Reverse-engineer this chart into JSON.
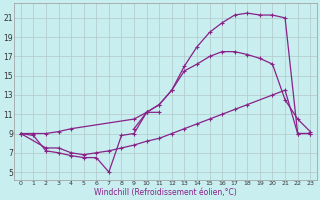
{
  "bg_color": "#c8eef0",
  "line_color": "#882288",
  "grid_color": "#b0c8c8",
  "xlabel": "Windchill (Refroidissement éolien,°C)",
  "yticks": [
    5,
    7,
    9,
    11,
    13,
    15,
    17,
    19,
    21
  ],
  "xticks": [
    0,
    1,
    2,
    3,
    4,
    5,
    6,
    7,
    8,
    9,
    10,
    11,
    12,
    13,
    14,
    15,
    16,
    17,
    18,
    19,
    20,
    21,
    22,
    23
  ],
  "xlim": [
    -0.5,
    23.5
  ],
  "ylim": [
    4.2,
    22.5
  ],
  "line1_x": [
    0,
    1,
    2,
    3,
    4,
    5,
    6,
    7,
    8,
    9,
    10,
    11
  ],
  "line1_y": [
    9.0,
    8.8,
    7.2,
    7.0,
    6.7,
    6.5,
    6.5,
    5.0,
    8.8,
    9.0,
    11.2,
    11.2
  ],
  "line2_x": [
    0,
    2,
    3,
    4,
    5,
    6,
    7,
    8,
    9,
    10,
    11,
    12,
    13,
    14,
    15,
    16,
    17,
    18,
    20,
    21,
    22,
    23
  ],
  "line2_y": [
    9.0,
    7.5,
    7.5,
    7.0,
    6.8,
    7.0,
    7.2,
    7.5,
    7.8,
    8.2,
    8.5,
    9.0,
    9.5,
    10.0,
    10.5,
    11.0,
    11.5,
    12.0,
    13.0,
    13.5,
    9.0,
    9.0
  ],
  "line3_x": [
    0,
    1,
    2,
    3,
    4,
    9,
    10,
    11,
    12,
    13,
    14,
    15,
    16,
    17,
    18,
    19,
    20,
    21,
    22,
    23
  ],
  "line3_y": [
    9.0,
    9.0,
    9.0,
    9.2,
    9.5,
    10.5,
    11.2,
    12.0,
    13.5,
    15.5,
    16.2,
    17.0,
    17.5,
    17.5,
    17.2,
    16.8,
    16.2,
    12.5,
    10.5,
    9.2
  ],
  "line4_x": [
    9,
    10,
    11,
    12,
    13,
    14,
    15,
    16,
    17,
    18,
    19,
    20,
    21,
    22,
    23
  ],
  "line4_y": [
    9.5,
    11.2,
    12.0,
    13.5,
    16.0,
    18.0,
    19.5,
    20.5,
    21.3,
    21.5,
    21.3,
    21.3,
    21.0,
    9.0,
    9.0
  ]
}
